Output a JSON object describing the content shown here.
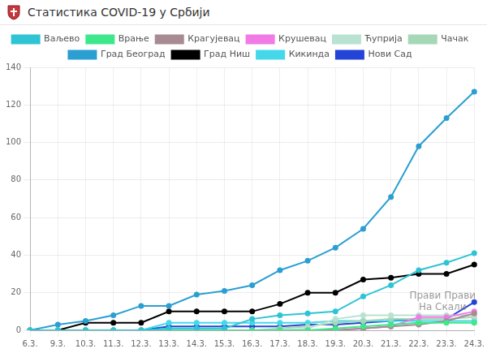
{
  "chart_data": {
    "type": "line",
    "title": "Статистика COVID-19 у Србији",
    "annotations": [
      "Прави Прави",
      "На Скали"
    ],
    "categories": [
      "6.3.",
      "9.3.",
      "10.3.",
      "11.3.",
      "12.3.",
      "13.3.",
      "14.3.",
      "15.3.",
      "16.3.",
      "17.3.",
      "18.3.",
      "19.3.",
      "20.3.",
      "21.3.",
      "22.3.",
      "23.3.",
      "24.3."
    ],
    "series": [
      {
        "name": "Ваљево",
        "color": "#2ec4d4",
        "values": [
          0,
          0,
          0,
          0,
          0,
          1,
          1,
          1,
          6,
          8,
          9,
          10,
          18,
          24,
          32,
          36,
          41
        ]
      },
      {
        "name": "Врање",
        "color": "#3de88c",
        "values": [
          0,
          0,
          0,
          0,
          0,
          0,
          0,
          0,
          0,
          0,
          0,
          1,
          2,
          3,
          4,
          4,
          4
        ]
      },
      {
        "name": "Крагујевац",
        "color": "#a88a92",
        "values": [
          0,
          0,
          0,
          0,
          0,
          0,
          0,
          0,
          0,
          0,
          0,
          0,
          1,
          2,
          3,
          5,
          9
        ]
      },
      {
        "name": "Крушевац",
        "color": "#f07ae6",
        "values": [
          0,
          0,
          0,
          0,
          0,
          0,
          0,
          0,
          0,
          0,
          0,
          0,
          1,
          2,
          7,
          7,
          10
        ]
      },
      {
        "name": "Ћуприја",
        "color": "#b9e2d2",
        "values": [
          0,
          0,
          0,
          0,
          0,
          0,
          0,
          0,
          0,
          0,
          1,
          6,
          8,
          8,
          8,
          8,
          8
        ]
      },
      {
        "name": "Чачак",
        "color": "#a6d7b6",
        "values": [
          0,
          0,
          0,
          0,
          0,
          0,
          0,
          0,
          0,
          1,
          2,
          4,
          5,
          6,
          6,
          6,
          7
        ]
      },
      {
        "name": "Град Београд",
        "color": "#2b9fd2",
        "values": [
          0,
          3,
          5,
          8,
          13,
          13,
          19,
          21,
          24,
          32,
          37,
          44,
          54,
          71,
          98,
          113,
          127
        ]
      },
      {
        "name": "Град Ниш",
        "color": "#000000",
        "values": [
          0,
          0,
          4,
          4,
          4,
          10,
          10,
          10,
          10,
          14,
          20,
          20,
          27,
          28,
          30,
          30,
          35
        ]
      },
      {
        "name": "Кикинда",
        "color": "#44d8ea",
        "values": [
          0,
          0,
          0,
          0,
          0,
          4,
          4,
          4,
          4,
          4,
          4,
          5,
          5,
          5,
          5,
          5,
          5
        ]
      },
      {
        "name": "Нови Сад",
        "color": "#2344d6",
        "values": [
          0,
          0,
          0,
          0,
          0,
          2,
          2,
          2,
          2,
          2,
          3,
          3,
          4,
          5,
          6,
          6,
          15
        ]
      }
    ],
    "ylim": [
      0,
      140
    ],
    "yticks": [
      0,
      20,
      40,
      60,
      80,
      100,
      120,
      140
    ],
    "grid": true,
    "legend": "top",
    "marker": "circle",
    "line_style": "solid"
  }
}
